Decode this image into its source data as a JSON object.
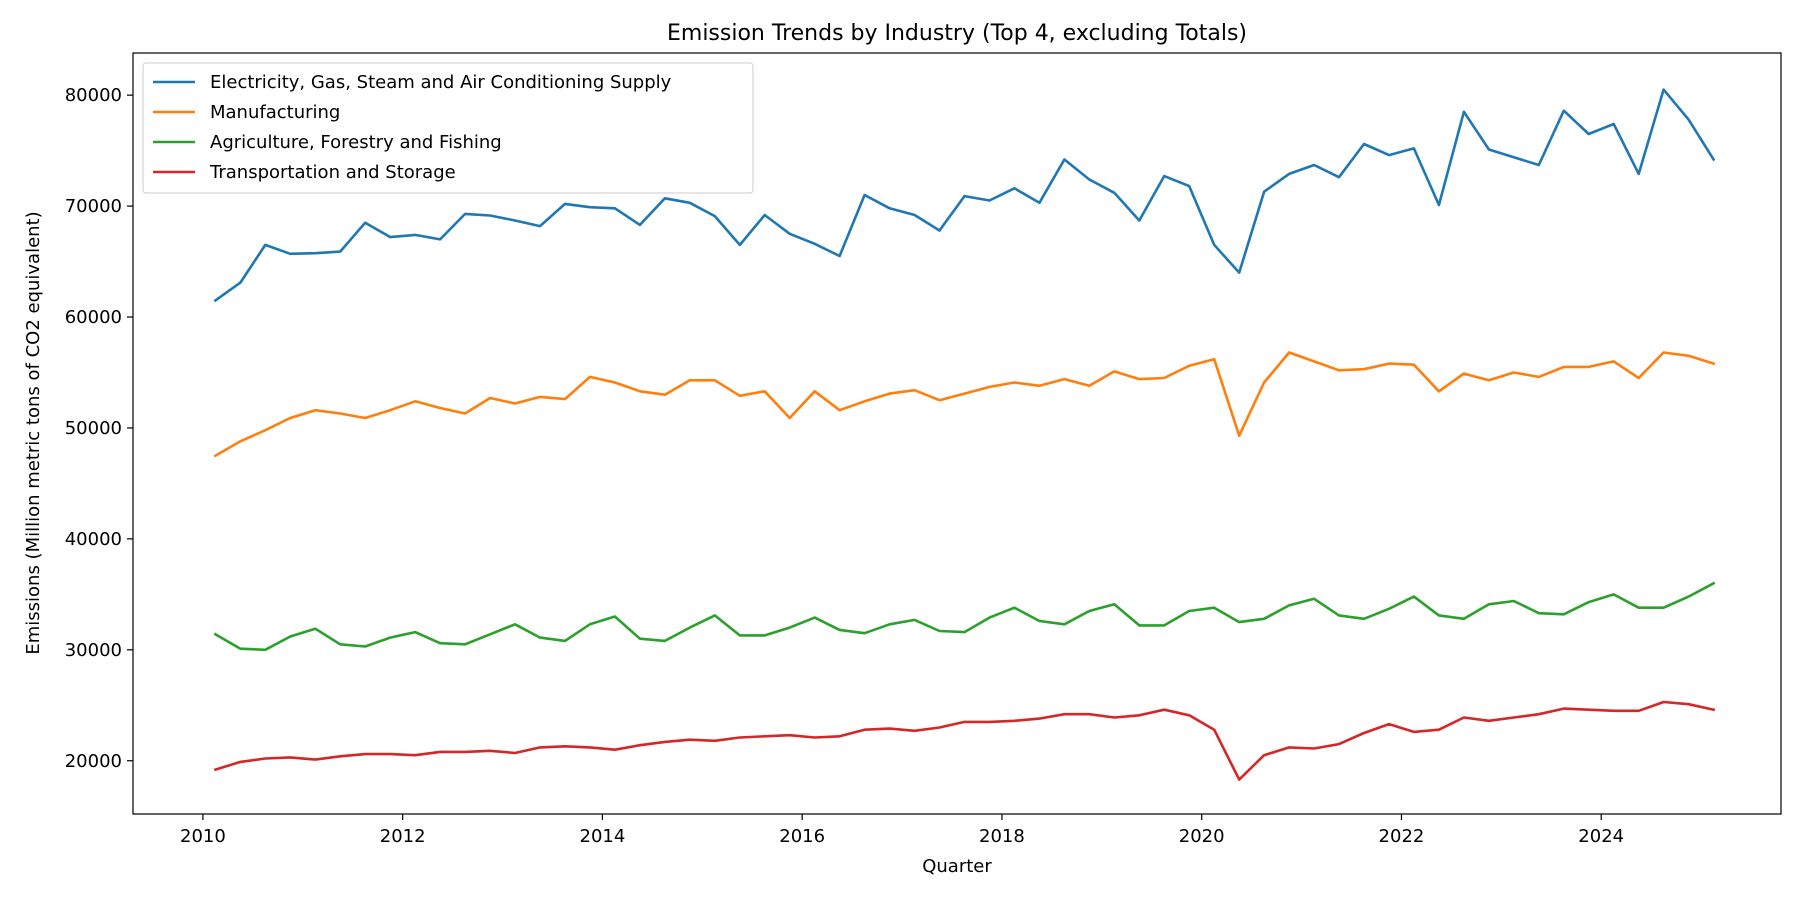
{
  "chart_data": {
    "type": "line",
    "title": "Emission Trends by Industry (Top 4, excluding Totals)",
    "xlabel": "Quarter",
    "ylabel": "Emissions (Million metric tons of CO2 equivalent)",
    "xlim": [
      2009.3,
      2025.8
    ],
    "ylim": [
      15200,
      83800
    ],
    "xticks": [
      2010,
      2012,
      2014,
      2016,
      2018,
      2020,
      2022,
      2024
    ],
    "yticks": [
      20000,
      30000,
      40000,
      50000,
      60000,
      70000,
      80000
    ],
    "grid": false,
    "legend_position": "top-left",
    "x": [
      2010.125,
      2010.375,
      2010.625,
      2010.875,
      2011.125,
      2011.375,
      2011.625,
      2011.875,
      2012.125,
      2012.375,
      2012.625,
      2012.875,
      2013.125,
      2013.375,
      2013.625,
      2013.875,
      2014.125,
      2014.375,
      2014.625,
      2014.875,
      2015.125,
      2015.375,
      2015.625,
      2015.875,
      2016.125,
      2016.375,
      2016.625,
      2016.875,
      2017.125,
      2017.375,
      2017.625,
      2017.875,
      2018.125,
      2018.375,
      2018.625,
      2018.875,
      2019.125,
      2019.375,
      2019.625,
      2019.875,
      2020.125,
      2020.375,
      2020.625,
      2020.875,
      2021.125,
      2021.375,
      2021.625,
      2021.875,
      2022.125,
      2022.375,
      2022.625,
      2022.875,
      2023.125,
      2023.375,
      2023.625,
      2023.875,
      2024.125,
      2024.375,
      2024.625,
      2024.875,
      2025.125
    ],
    "series": [
      {
        "name": "Electricity, Gas, Steam and Air Conditioning Supply",
        "color": "#1f77b4",
        "values": [
          61500,
          63100,
          66500,
          65700,
          65750,
          65900,
          68500,
          67200,
          67400,
          67000,
          69300,
          69150,
          68700,
          68200,
          70200,
          69900,
          69800,
          68300,
          70700,
          70300,
          69100,
          66500,
          69200,
          67500,
          66600,
          65500,
          71000,
          69800,
          69200,
          67800,
          70900,
          70500,
          71600,
          70300,
          74200,
          72400,
          71200,
          68700,
          72700,
          71800,
          66500,
          64000,
          71300,
          72900,
          73700,
          72600,
          75600,
          74600,
          75200,
          70100,
          78500,
          75100,
          74400,
          73700,
          78600,
          76500,
          77400,
          72900,
          80500,
          77800,
          74200
        ]
      },
      {
        "name": "Manufacturing",
        "color": "#ff7f0e",
        "values": [
          47500,
          48800,
          49800,
          50900,
          51600,
          51300,
          50900,
          51600,
          52400,
          51800,
          51300,
          52700,
          52200,
          52800,
          52600,
          54600,
          54100,
          53300,
          53000,
          54300,
          54300,
          52900,
          53300,
          50900,
          53300,
          51600,
          52400,
          53100,
          53400,
          52500,
          53100,
          53700,
          54100,
          53800,
          54400,
          53800,
          55100,
          54400,
          54500,
          55600,
          56200,
          49300,
          54100,
          56800,
          56000,
          55200,
          55300,
          55800,
          55700,
          53300,
          54900,
          54300,
          55000,
          54600,
          55500,
          55500,
          56000,
          54500,
          56800,
          56500,
          55800
        ]
      },
      {
        "name": "Agriculture, Forestry and Fishing",
        "color": "#2ca02c",
        "values": [
          31400,
          30100,
          30000,
          31200,
          31900,
          30500,
          30300,
          31100,
          31600,
          30600,
          30500,
          31400,
          32300,
          31100,
          30800,
          32300,
          33000,
          31000,
          30800,
          32000,
          33100,
          31300,
          31300,
          32000,
          32900,
          31800,
          31500,
          32300,
          32700,
          31700,
          31600,
          32900,
          33800,
          32600,
          32300,
          33500,
          34100,
          32200,
          32200,
          33500,
          33800,
          32500,
          32800,
          34000,
          34600,
          33100,
          32800,
          33700,
          34800,
          33100,
          32800,
          34100,
          34400,
          33300,
          33200,
          34300,
          35000,
          33800,
          33800,
          34800,
          36000
        ]
      },
      {
        "name": "Transportation and Storage",
        "color": "#d62728",
        "values": [
          19200,
          19900,
          20200,
          20300,
          20100,
          20400,
          20600,
          20600,
          20500,
          20800,
          20800,
          20900,
          20700,
          21200,
          21300,
          21200,
          21000,
          21400,
          21700,
          21900,
          21800,
          22100,
          22200,
          22300,
          22100,
          22200,
          22800,
          22900,
          22700,
          23000,
          23500,
          23500,
          23600,
          23800,
          24200,
          24200,
          23900,
          24100,
          24600,
          24100,
          22800,
          18300,
          20500,
          21200,
          21100,
          21500,
          22500,
          23300,
          22600,
          22800,
          23900,
          23600,
          23900,
          24200,
          24700,
          24600,
          24500,
          24500,
          25300,
          25100,
          24600
        ]
      }
    ]
  }
}
